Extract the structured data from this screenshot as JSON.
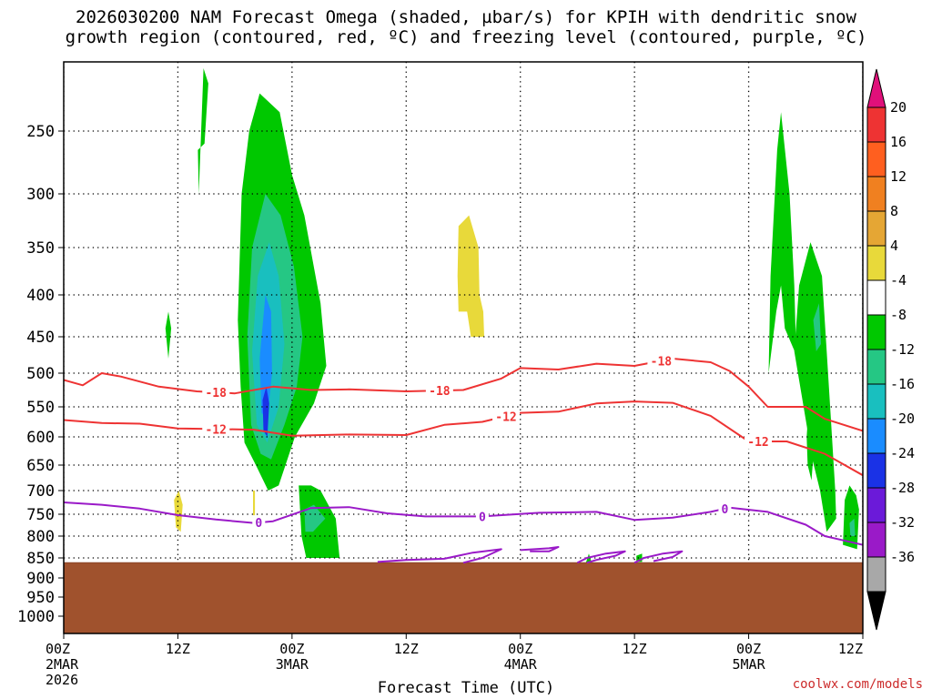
{
  "title": {
    "line1": "2026030200 NAM Forecast Omega (shaded, µbar/s) for KPIH with dendritic snow",
    "line2": "growth region (contoured, red, ºC) and freezing level (contoured, purple, ºC)"
  },
  "credit": "coolwx.com/models",
  "chart_data": {
    "type": "heatmap",
    "xlabel": "Forecast Time (UTC)",
    "x_range_hours": [
      0,
      84
    ],
    "y_axis": {
      "scale": "pressure",
      "range_hPa": [
        1050,
        200
      ],
      "inverted": true
    },
    "x_ticks": [
      {
        "hour": 0,
        "lines": [
          "00Z",
          "2MAR",
          "2026"
        ]
      },
      {
        "hour": 12,
        "lines": [
          "12Z"
        ]
      },
      {
        "hour": 24,
        "lines": [
          "00Z",
          "3MAR"
        ]
      },
      {
        "hour": 36,
        "lines": [
          "12Z"
        ]
      },
      {
        "hour": 48,
        "lines": [
          "00Z",
          "4MAR"
        ]
      },
      {
        "hour": 60,
        "lines": [
          "12Z"
        ]
      },
      {
        "hour": 72,
        "lines": [
          "00Z",
          "5MAR"
        ]
      },
      {
        "hour": 84,
        "lines": [
          "12Z"
        ]
      }
    ],
    "y_ticks": [
      250,
      300,
      350,
      400,
      450,
      500,
      550,
      600,
      650,
      700,
      750,
      800,
      850,
      900,
      950,
      1000
    ],
    "grid": true,
    "terrain": {
      "surface_hPa": 862,
      "color": "#a0522d"
    },
    "colorbar": {
      "labels": [
        "20",
        "16",
        "12",
        "8",
        "4",
        "-4",
        "-8",
        "-12",
        "-16",
        "-20",
        "-24",
        "-28",
        "-32",
        "-36"
      ],
      "colors": [
        "#e0107a",
        "#ee3333",
        "#ff5f1f",
        "#f08020",
        "#e5a634",
        "#e8d93a",
        "#ffffff",
        "#00c800",
        "#25c784",
        "#19bfbf",
        "#1a8cff",
        "#1a32e6",
        "#6b1ad9",
        "#9a1ac8",
        "#a8a8a8",
        "#000000"
      ]
    },
    "omega_levels": [
      "-8",
      "-12",
      "-16",
      "-20",
      "4"
    ],
    "omega_regions": [
      {
        "level": "-4",
        "color": "#00c800",
        "pts": [
          [
            14.2,
            300
          ],
          [
            14.7,
            200
          ],
          [
            15.2,
            212
          ],
          [
            14.8,
            260
          ],
          [
            14.1,
            265
          ]
        ]
      },
      {
        "level": "-4",
        "color": "#00c800",
        "pts": [
          [
            10.7,
            440
          ],
          [
            11,
            420
          ],
          [
            11.3,
            440
          ],
          [
            11,
            480
          ]
        ]
      },
      {
        "level": "-4",
        "color": "#00c800",
        "pts": [
          [
            18.7,
            300
          ],
          [
            19.5,
            250
          ],
          [
            20.6,
            220
          ],
          [
            22.7,
            235
          ],
          [
            24,
            285
          ],
          [
            25.3,
            320
          ],
          [
            27,
            410
          ],
          [
            27.6,
            490
          ],
          [
            26.3,
            545
          ],
          [
            24.3,
            600
          ],
          [
            22.6,
            690
          ],
          [
            21.5,
            700
          ],
          [
            20.2,
            650
          ],
          [
            19,
            610
          ],
          [
            18.6,
            520
          ],
          [
            18.3,
            430
          ]
        ]
      },
      {
        "level": "-4",
        "color": "#00c800",
        "pts": [
          [
            24.7,
            690
          ],
          [
            26,
            690
          ],
          [
            27,
            700
          ],
          [
            28.6,
            760
          ],
          [
            29,
            850
          ],
          [
            25.5,
            850
          ],
          [
            25,
            800
          ]
        ]
      },
      {
        "level": "-4",
        "color": "#00c800",
        "pts": [
          [
            74.1,
            500
          ],
          [
            74.3,
            380
          ],
          [
            75,
            265
          ],
          [
            75.4,
            235
          ],
          [
            76.3,
            300
          ],
          [
            76.8,
            390
          ],
          [
            77,
            475
          ],
          [
            75.8,
            440
          ],
          [
            75.4,
            390
          ],
          [
            74.9,
            420
          ]
        ]
      },
      {
        "level": "-4",
        "color": "#00c800",
        "pts": [
          [
            76.8,
            470
          ],
          [
            77.3,
            390
          ],
          [
            78.5,
            345
          ],
          [
            79.7,
            380
          ],
          [
            80.2,
            470
          ],
          [
            80.6,
            560
          ],
          [
            81.1,
            700
          ],
          [
            81.2,
            760
          ],
          [
            80.2,
            790
          ],
          [
            79.5,
            700
          ],
          [
            78.7,
            640
          ]
        ]
      },
      {
        "level": "-4",
        "color": "#00c800",
        "pts": [
          [
            82.1,
            720
          ],
          [
            82.6,
            690
          ],
          [
            83.3,
            710
          ],
          [
            83.6,
            740
          ],
          [
            83.4,
            830
          ],
          [
            81.9,
            820
          ]
        ]
      },
      {
        "level": "-4",
        "color": "#00c800",
        "pts": [
          [
            78.1,
            600
          ],
          [
            78.3,
            550
          ],
          [
            78.9,
            610
          ],
          [
            78.6,
            680
          ],
          [
            78.2,
            650
          ]
        ]
      },
      {
        "level": "-4",
        "color": "#00c800",
        "pts": [
          [
            54.9,
            862
          ],
          [
            55.2,
            840
          ],
          [
            55.5,
            862
          ]
        ]
      },
      {
        "level": "-4",
        "color": "#00c800",
        "pts": [
          [
            60.2,
            845
          ],
          [
            60.8,
            840
          ],
          [
            60.8,
            860
          ],
          [
            60.2,
            860
          ]
        ]
      },
      {
        "level": "-8",
        "color": "#25c784",
        "pts": [
          [
            19.3,
            450
          ],
          [
            19.8,
            350
          ],
          [
            21.2,
            300
          ],
          [
            22.8,
            320
          ],
          [
            24.2,
            370
          ],
          [
            25.1,
            450
          ],
          [
            24.5,
            520
          ],
          [
            23.2,
            580
          ],
          [
            21.8,
            640
          ],
          [
            20.7,
            630
          ],
          [
            19.7,
            580
          ]
        ]
      },
      {
        "level": "-8",
        "color": "#25c784",
        "pts": [
          [
            25.3,
            740
          ],
          [
            26.3,
            730
          ],
          [
            27.5,
            760
          ],
          [
            26.2,
            790
          ],
          [
            25.4,
            790
          ]
        ]
      },
      {
        "level": "-8",
        "color": "#25c784",
        "pts": [
          [
            78.8,
            430
          ],
          [
            79.4,
            410
          ],
          [
            79.6,
            460
          ],
          [
            79.1,
            470
          ]
        ]
      },
      {
        "level": "-8",
        "color": "#25c784",
        "pts": [
          [
            82.6,
            770
          ],
          [
            83.1,
            760
          ],
          [
            83.2,
            800
          ],
          [
            82.7,
            800
          ]
        ]
      },
      {
        "level": "-12",
        "color": "#19bfbf",
        "pts": [
          [
            19.8,
            470
          ],
          [
            20.4,
            380
          ],
          [
            21.6,
            345
          ],
          [
            22.6,
            380
          ],
          [
            23.2,
            460
          ],
          [
            22.6,
            550
          ],
          [
            21.4,
            610
          ],
          [
            20.3,
            580
          ]
        ]
      },
      {
        "level": "-16",
        "color": "#1a8cff",
        "pts": [
          [
            20.6,
            480
          ],
          [
            21.2,
            400
          ],
          [
            21.8,
            420
          ],
          [
            21.9,
            500
          ],
          [
            21.4,
            570
          ],
          [
            20.8,
            560
          ]
        ]
      },
      {
        "level": "-20",
        "color": "#1a32e6",
        "pts": [
          [
            20.9,
            540
          ],
          [
            21.3,
            520
          ],
          [
            21.6,
            545
          ],
          [
            21.4,
            600
          ],
          [
            21.0,
            590
          ]
        ]
      },
      {
        "level": "4",
        "color": "#e8d93a",
        "pts": [
          [
            41.5,
            330
          ],
          [
            42.6,
            320
          ],
          [
            43.6,
            350
          ],
          [
            43.7,
            400
          ],
          [
            44.1,
            420
          ],
          [
            44.2,
            450
          ],
          [
            42.8,
            450
          ],
          [
            42.4,
            420
          ],
          [
            41.5,
            420
          ],
          [
            41.4,
            380
          ]
        ]
      },
      {
        "level": "4",
        "color": "#e8d93a",
        "pts": [
          [
            11.6,
            720
          ],
          [
            12.1,
            700
          ],
          [
            12.5,
            730
          ],
          [
            12.3,
            790
          ],
          [
            11.8,
            780
          ]
        ]
      },
      {
        "level": "4",
        "color": "#e8d93a",
        "pts": [
          [
            19.9,
            700
          ],
          [
            20.1,
            700
          ],
          [
            20.1,
            760
          ],
          [
            19.9,
            760
          ]
        ]
      }
    ],
    "contours": [
      {
        "label": "-18",
        "color": "#ee3333",
        "label_hours": [
          16,
          39.5,
          62.8
        ],
        "pts": [
          [
            0,
            510
          ],
          [
            2,
            518
          ],
          [
            4,
            500
          ],
          [
            6,
            505
          ],
          [
            10,
            520
          ],
          [
            14,
            527
          ],
          [
            18,
            530
          ],
          [
            22,
            520
          ],
          [
            26,
            525
          ],
          [
            30,
            524
          ],
          [
            36,
            527
          ],
          [
            42,
            525
          ],
          [
            46,
            508
          ],
          [
            48,
            493
          ],
          [
            52,
            495
          ],
          [
            56,
            487
          ],
          [
            60,
            490
          ],
          [
            64,
            480
          ],
          [
            68,
            485
          ],
          [
            70,
            497
          ],
          [
            72,
            520
          ],
          [
            74,
            550
          ],
          [
            78,
            550
          ],
          [
            80,
            570
          ],
          [
            84,
            590
          ]
        ]
      },
      {
        "label": "-12",
        "color": "#ee3333",
        "label_hours": [
          16,
          46.5,
          73
        ],
        "pts": [
          [
            0,
            572
          ],
          [
            4,
            577
          ],
          [
            8,
            578
          ],
          [
            12,
            586
          ],
          [
            16,
            587
          ],
          [
            20,
            588
          ],
          [
            24,
            598
          ],
          [
            30,
            596
          ],
          [
            36,
            597
          ],
          [
            40,
            580
          ],
          [
            44,
            575
          ],
          [
            48,
            560
          ],
          [
            52,
            558
          ],
          [
            56,
            545
          ],
          [
            60,
            542
          ],
          [
            64,
            544
          ],
          [
            68,
            565
          ],
          [
            72,
            608
          ],
          [
            76,
            608
          ],
          [
            80,
            630
          ],
          [
            84,
            670
          ]
        ]
      },
      {
        "label": "0",
        "color": "#9a1ac8",
        "label_hours": [
          20.5,
          44,
          69.5
        ],
        "pts": [
          [
            0,
            725
          ],
          [
            4,
            730
          ],
          [
            8,
            738
          ],
          [
            12,
            752
          ],
          [
            16,
            762
          ],
          [
            20,
            770
          ],
          [
            22,
            766
          ],
          [
            26,
            737
          ],
          [
            30,
            735
          ],
          [
            34,
            748
          ],
          [
            38,
            755
          ],
          [
            44,
            755
          ],
          [
            50,
            747
          ],
          [
            56,
            745
          ],
          [
            60,
            763
          ],
          [
            64,
            758
          ],
          [
            68,
            745
          ],
          [
            70,
            736
          ],
          [
            74,
            745
          ],
          [
            78,
            774
          ],
          [
            80,
            800
          ],
          [
            82,
            810
          ],
          [
            84,
            820
          ]
        ]
      },
      {
        "label": "",
        "color": "#9a1ac8",
        "label_hours": [],
        "pts": [
          [
            33,
            860
          ],
          [
            36,
            855
          ],
          [
            40,
            852
          ],
          [
            43,
            838
          ],
          [
            46,
            830
          ],
          [
            44,
            850
          ],
          [
            42,
            862
          ]
        ]
      },
      {
        "label": "",
        "color": "#9a1ac8",
        "label_hours": [],
        "pts": [
          [
            48,
            832
          ],
          [
            51,
            828
          ],
          [
            52,
            825
          ],
          [
            51,
            835
          ],
          [
            49,
            835
          ]
        ]
      },
      {
        "label": "",
        "color": "#9a1ac8",
        "label_hours": [],
        "pts": [
          [
            54,
            862
          ],
          [
            55,
            850
          ],
          [
            57,
            840
          ],
          [
            59,
            835
          ],
          [
            58,
            845
          ],
          [
            56,
            855
          ],
          [
            55,
            862
          ]
        ]
      },
      {
        "label": "",
        "color": "#9a1ac8",
        "label_hours": [],
        "pts": [
          [
            60,
            862
          ],
          [
            61,
            850
          ],
          [
            63,
            840
          ],
          [
            65,
            835
          ],
          [
            64,
            848
          ],
          [
            62,
            858
          ]
        ]
      }
    ]
  }
}
